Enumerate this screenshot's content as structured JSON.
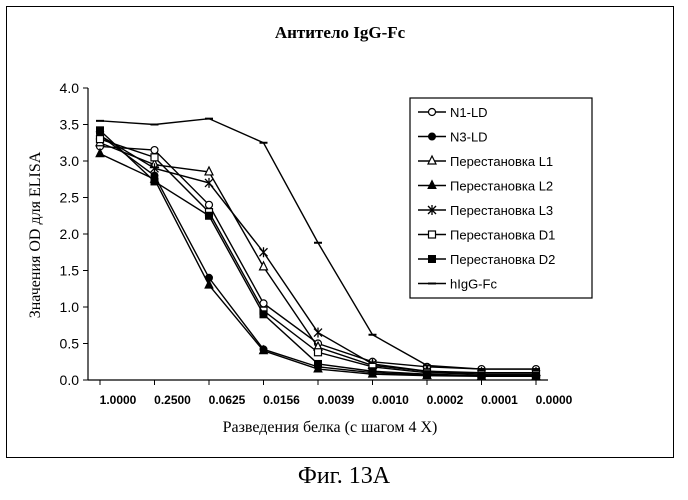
{
  "caption": "Фиг. 13А",
  "chart_data": {
    "type": "line",
    "title": "Антитело IgG-Fc",
    "xlabel": "Разведения белка (с шагом 4 Х)",
    "ylabel": "Значения OD для ELISA",
    "categories": [
      "1.0000",
      "0.2500",
      "0.0625",
      "0.0156",
      "0.0039",
      "0.0010",
      "0.0002",
      "0.0001",
      "0.0000"
    ],
    "ylim": [
      0,
      4
    ],
    "yticks": [
      "0.0",
      "0.5",
      "1.0",
      "1.5",
      "2.0",
      "2.5",
      "3.0",
      "3.5",
      "4.0"
    ],
    "legend_position": "right",
    "series": [
      {
        "name": "N1-LD",
        "marker": "circle-open",
        "values": [
          3.2,
          3.15,
          2.4,
          1.05,
          0.5,
          0.25,
          0.18,
          0.15,
          0.15
        ]
      },
      {
        "name": "N3-LD",
        "marker": "circle-filled",
        "values": [
          3.35,
          2.8,
          1.4,
          0.42,
          0.18,
          0.1,
          0.07,
          0.06,
          0.06
        ]
      },
      {
        "name": "Перестановка L1",
        "marker": "triangle-open",
        "values": [
          3.25,
          2.95,
          2.85,
          1.55,
          0.45,
          0.2,
          0.12,
          0.1,
          0.1
        ]
      },
      {
        "name": "Перестановка L2",
        "marker": "triangle-filled",
        "values": [
          3.1,
          2.75,
          1.3,
          0.4,
          0.15,
          0.08,
          0.06,
          0.05,
          0.05
        ]
      },
      {
        "name": "Перестановка L3",
        "marker": "star",
        "values": [
          3.35,
          2.9,
          2.7,
          1.75,
          0.65,
          0.22,
          0.12,
          0.08,
          0.08
        ]
      },
      {
        "name": "Перестановка D1",
        "marker": "square-open",
        "values": [
          3.3,
          3.05,
          2.3,
          0.95,
          0.38,
          0.18,
          0.1,
          0.08,
          0.08
        ]
      },
      {
        "name": "Перестановка D2",
        "marker": "square-filled",
        "values": [
          3.42,
          2.72,
          2.25,
          0.9,
          0.22,
          0.12,
          0.08,
          0.06,
          0.06
        ]
      },
      {
        "name": "hIgG-Fc",
        "marker": "dash",
        "values": [
          3.55,
          3.5,
          3.58,
          3.25,
          1.88,
          0.62,
          0.2,
          0.15,
          0.15
        ]
      }
    ],
    "grid": false
  }
}
